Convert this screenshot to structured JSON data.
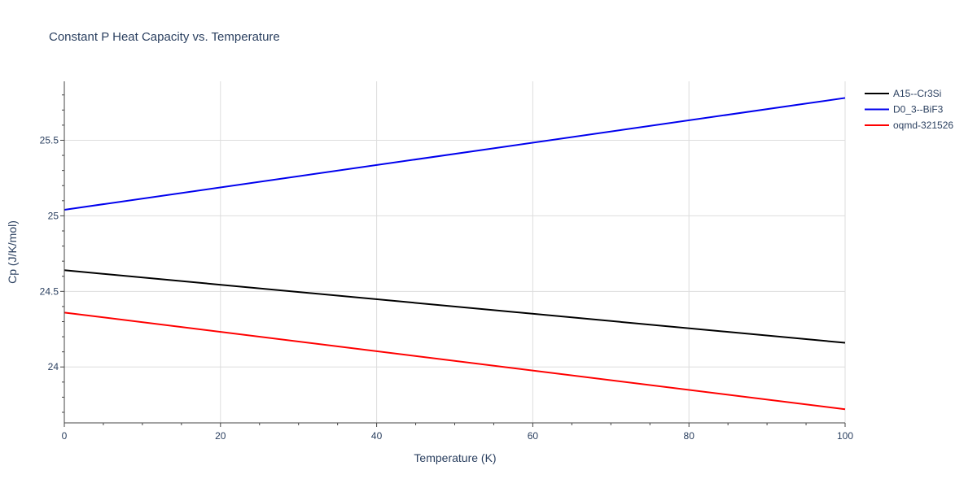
{
  "chart_data": {
    "type": "line",
    "title": "Constant P Heat Capacity vs. Temperature",
    "xlabel": "Temperature (K)",
    "ylabel": "Cp (J/K/mol)",
    "xlim": [
      0,
      100
    ],
    "ylim": [
      23.63,
      25.89
    ],
    "x_ticks": [
      0,
      20,
      40,
      60,
      80,
      100
    ],
    "x_tick_labels": [
      "0",
      "20",
      "40",
      "60",
      "80",
      "100"
    ],
    "y_ticks": [
      24,
      24.5,
      25,
      25.5
    ],
    "y_tick_labels": [
      "24",
      "24.5",
      "25",
      "25.5"
    ],
    "grid": true,
    "legend_position": "top-right",
    "series": [
      {
        "name": "A15--Cr3Si",
        "color": "#000000",
        "x": [
          0,
          100
        ],
        "y": [
          24.64,
          24.16
        ]
      },
      {
        "name": "D0_3--BiF3",
        "color": "#0000ee",
        "x": [
          0,
          100
        ],
        "y": [
          25.04,
          25.78
        ]
      },
      {
        "name": "oqmd-321526",
        "color": "#ff0000",
        "x": [
          0,
          100
        ],
        "y": [
          24.36,
          23.72
        ]
      }
    ]
  }
}
